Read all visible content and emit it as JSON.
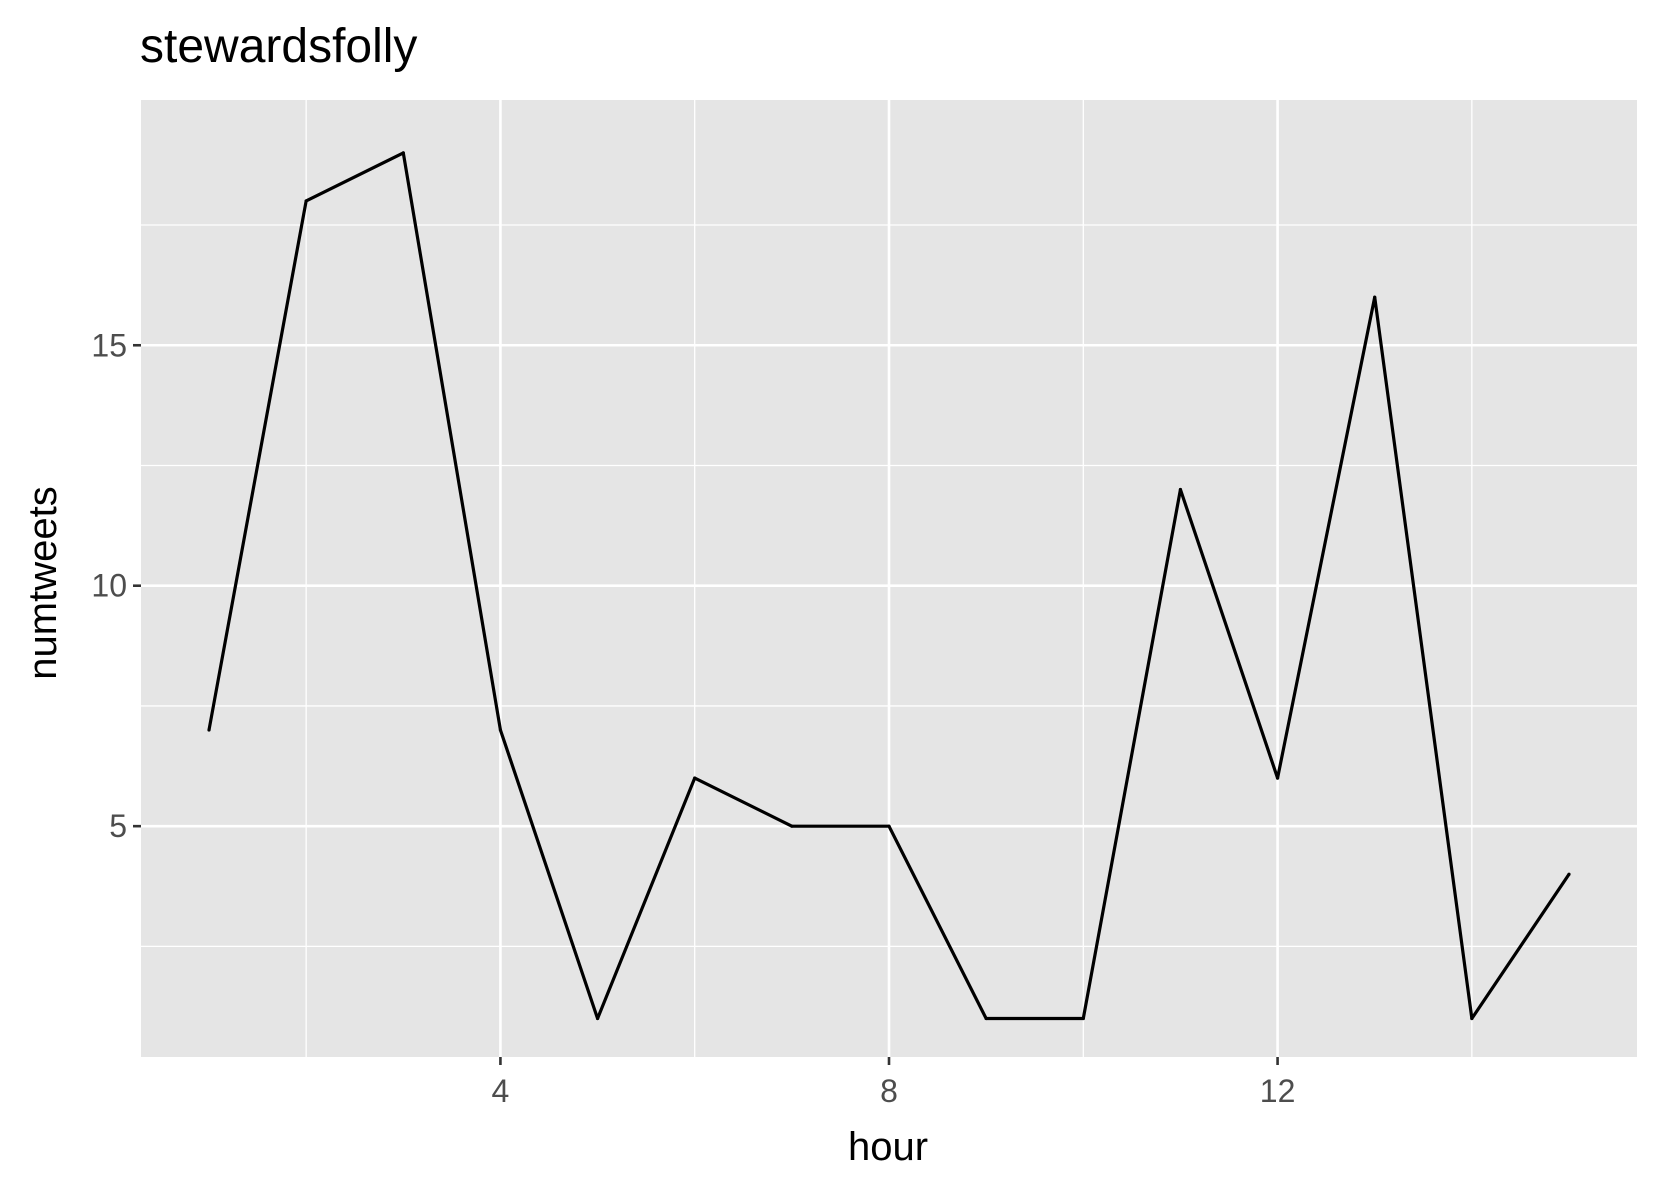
{
  "chart_data": {
    "type": "line",
    "title": "stewardsfolly",
    "xlabel": "hour",
    "ylabel": "numtweets",
    "xlim": [
      0.3,
      15.7
    ],
    "ylim": [
      0.2,
      20.1
    ],
    "x_ticks": [
      4,
      8,
      12
    ],
    "x_minor_ticks": [
      2,
      6,
      10,
      14
    ],
    "x_tick_labels": [
      "4",
      "8",
      "12"
    ],
    "y_ticks": [
      5,
      10,
      15
    ],
    "y_minor_ticks": [
      2.5,
      7.5,
      12.5,
      17.5
    ],
    "y_tick_labels": [
      "5",
      "10",
      "15"
    ],
    "grid": true,
    "series": [
      {
        "x": [
          1,
          2,
          3,
          4,
          5,
          6,
          7,
          8,
          9,
          10,
          11,
          12,
          13,
          14,
          15
        ],
        "values": [
          7,
          18,
          19,
          7,
          1,
          6,
          5,
          5,
          1,
          1,
          12,
          6,
          16,
          1,
          4
        ]
      }
    ],
    "colors": {
      "panel_background": "#e5e5e5",
      "grid": "#ffffff",
      "line": "#000000",
      "tick_label": "#4d4d4d"
    }
  }
}
